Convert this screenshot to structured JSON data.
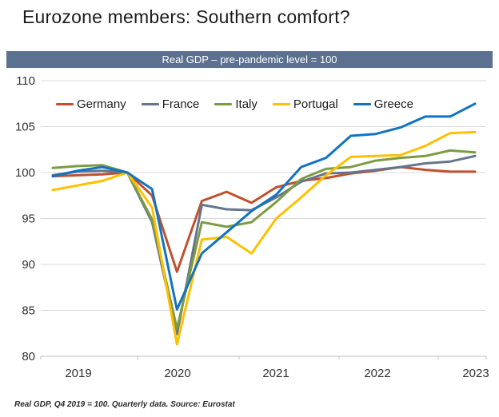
{
  "title": "Eurozone members: Southern comfort?",
  "banner": {
    "text": "Real GDP – pre-pandemic level = 100"
  },
  "footer": {
    "text": "Real GDP, Q4 2019 = 100. Quarterly data. Source: Eurostat"
  },
  "colors": {
    "banner_bg": "#5C7190",
    "banner_text": "#FFFFFF",
    "grid": "#D9D9D9",
    "axis": "#BFBFBF",
    "tick_text": "#333333"
  },
  "chart_data": {
    "type": "line",
    "title": "Real GDP – pre-pandemic level = 100",
    "xlabel": "",
    "ylabel": "",
    "ylim": [
      80,
      110
    ],
    "yticks": [
      110,
      105,
      100,
      95,
      90,
      85,
      80
    ],
    "grid": true,
    "legend_position": "top-inside",
    "x_year_labels": [
      "2019",
      "2020",
      "2021",
      "2022",
      "2023"
    ],
    "categories": [
      "2019 Q1",
      "2019 Q2",
      "2019 Q3",
      "2019 Q4",
      "2020 Q1",
      "2020 Q2",
      "2020 Q3",
      "2020 Q4",
      "2021 Q1",
      "2021 Q2",
      "2021 Q3",
      "2021 Q4",
      "2022 Q1",
      "2022 Q2",
      "2022 Q3",
      "2022 Q4",
      "2023 Q1",
      "2023 Q2"
    ],
    "series": [
      {
        "name": "Germany",
        "color": "#C0512F",
        "values": [
          99.6,
          99.7,
          99.8,
          100,
          97.5,
          89.2,
          96.9,
          97.9,
          96.7,
          98.4,
          99.1,
          99.4,
          99.9,
          100.2,
          100.6,
          100.3,
          100.1,
          100.1
        ]
      },
      {
        "name": "France",
        "color": "#64758D",
        "values": [
          99.7,
          100.1,
          100.2,
          100,
          94.6,
          82.4,
          96.5,
          96.0,
          95.9,
          97.3,
          99.0,
          99.9,
          100.0,
          100.3,
          100.6,
          101.0,
          101.2,
          101.8
        ]
      },
      {
        "name": "Italy",
        "color": "#7D9B43",
        "values": [
          100.5,
          100.7,
          100.8,
          100,
          94.9,
          83.0,
          94.6,
          94.1,
          94.6,
          96.8,
          99.3,
          100.4,
          100.6,
          101.3,
          101.6,
          101.8,
          102.4,
          102.2
        ]
      },
      {
        "name": "Portugal",
        "color": "#FFC000",
        "values": [
          98.1,
          98.6,
          99.1,
          100,
          96.2,
          81.3,
          92.7,
          93.0,
          91.2,
          95.0,
          97.3,
          99.7,
          101.7,
          101.8,
          101.9,
          102.9,
          104.3,
          104.4
        ]
      },
      {
        "name": "Greece",
        "color": "#1273C2",
        "values": [
          99.6,
          100.2,
          100.6,
          100,
          98.2,
          85.1,
          91.2,
          93.5,
          95.8,
          97.6,
          100.6,
          101.6,
          104.0,
          104.2,
          104.9,
          106.1,
          106.1,
          107.5
        ]
      }
    ]
  }
}
